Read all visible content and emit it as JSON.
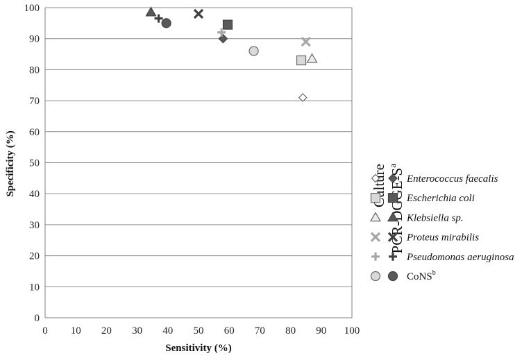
{
  "chart_data": {
    "type": "scatter",
    "xlabel": "Sensitivity (%)",
    "ylabel": "Specificity (%)",
    "xlim": [
      0,
      100
    ],
    "ylim": [
      0,
      100
    ],
    "xticks": [
      "0",
      "10",
      "20",
      "30",
      "40",
      "50",
      "60",
      "70",
      "80",
      "90",
      "100"
    ],
    "yticks": [
      "0",
      "10",
      "20",
      "30",
      "40",
      "50",
      "60",
      "70",
      "80",
      "90",
      "100"
    ],
    "grid": "horizontal",
    "method_headers": {
      "culture": "Culture",
      "pcr": "PCR-DGGE-S",
      "pcr_superscript": "a"
    },
    "series": [
      {
        "name": "Enterococcus faecalis",
        "italic": true,
        "superscript": "",
        "marker": "diamond",
        "culture": {
          "x": 84,
          "y": 71
        },
        "pcr": {
          "x": 58,
          "y": 90
        }
      },
      {
        "name": "Escherichia coli",
        "italic": true,
        "superscript": "",
        "marker": "square",
        "culture": {
          "x": 83.5,
          "y": 83
        },
        "pcr": {
          "x": 59.5,
          "y": 94.5
        }
      },
      {
        "name": "Klebsiella sp.",
        "italic": true,
        "superscript": "",
        "marker": "triangle",
        "culture": {
          "x": 87,
          "y": 83.5
        },
        "pcr": {
          "x": 34.5,
          "y": 98.5
        }
      },
      {
        "name": "Proteus mirabilis",
        "italic": true,
        "superscript": "",
        "marker": "x",
        "culture": {
          "x": 85,
          "y": 89
        },
        "pcr": {
          "x": 50,
          "y": 98
        }
      },
      {
        "name": "Pseudomonas aeruginosa",
        "italic": true,
        "superscript": "",
        "marker": "plus",
        "culture": {
          "x": 57.5,
          "y": 92
        },
        "pcr": {
          "x": 37,
          "y": 96.5
        }
      },
      {
        "name": "CoNS",
        "italic": false,
        "superscript": "b",
        "marker": "circle",
        "culture": {
          "x": 68,
          "y": 86
        },
        "pcr": {
          "x": 39.5,
          "y": 95
        }
      }
    ],
    "colors": {
      "culture_fill": "#d9d9d9",
      "culture_stroke": "#666666",
      "culture_cross": "#a6a6a6",
      "pcr_fill": "#595959",
      "pcr_stroke": "#404040",
      "grid": "#8c8c8c",
      "axis": "#7f7f7f"
    }
  }
}
